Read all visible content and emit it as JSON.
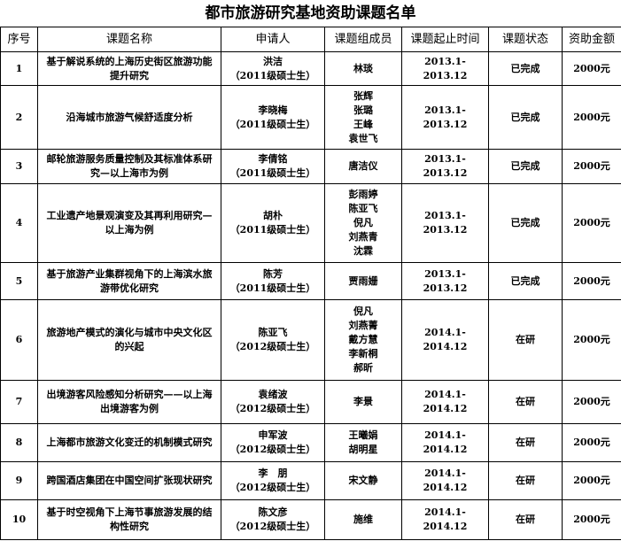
{
  "title": "都市旅游研究基地资助课题名单",
  "headers": [
    "序号",
    "课题名称",
    "申请人",
    "课题组成员",
    "课题起止时间",
    "课题状态",
    "资助金额"
  ],
  "rows": [
    {
      "no": "1",
      "topic": "基于解说系统的上海历史街区旅游功能提升研究",
      "applicant": "洪洁",
      "applicant_note": "（2011级硕士生）",
      "members": [
        "林琰"
      ],
      "period": "2013.1-2013.12",
      "status": "已完成",
      "amount": "2000元"
    },
    {
      "no": "2",
      "topic": "沿海城市旅游气候舒适度分析",
      "applicant": "李晓梅",
      "applicant_note": "（2011级硕士生）",
      "members": [
        "张辉",
        "张璐",
        "王峰",
        "袁世飞"
      ],
      "period": "2013.1-2013.12",
      "status": "已完成",
      "amount": "2000元"
    },
    {
      "no": "3",
      "topic": "邮轮旅游服务质量控制及其标准体系研究—以上海市为例",
      "applicant": "李倩铭",
      "applicant_note": "（2011级硕士生）",
      "members": [
        "唐洁仪"
      ],
      "period": "2013.1-2013.12",
      "status": "已完成",
      "amount": "2000元"
    },
    {
      "no": "4",
      "topic": "工业遗产地景观演变及其再利用研究—以上海为例",
      "applicant": "胡朴",
      "applicant_note": "（2011级硕士生）",
      "members": [
        "彭雨婷",
        "陈亚飞",
        "倪凡",
        "刘燕青",
        "沈霖"
      ],
      "period": "2013.1-2013.12",
      "status": "已完成",
      "amount": "2000元"
    },
    {
      "no": "5",
      "topic": "基于旅游产业集群视角下的上海滨水旅游带优化研究",
      "applicant": "陈芳",
      "applicant_note": "（2011级硕士生）",
      "members": [
        "贾雨姗"
      ],
      "period": "2013.1-2013.12",
      "status": "已完成",
      "amount": "2000元"
    },
    {
      "no": "6",
      "topic": "旅游地产模式的演化与城市中央文化区的兴起",
      "applicant": "陈亚飞",
      "applicant_note": "（2012级硕士生）",
      "members": [
        "倪凡",
        "刘燕菁",
        "戴方慧",
        "李新桐",
        "郝昕"
      ],
      "period": "2014.1-2014.12",
      "status": "在研",
      "amount": "2000元"
    },
    {
      "no": "7",
      "topic": "出境游客风险感知分析研究——以上海出境游客为例",
      "applicant": "袁绪波",
      "applicant_note": "（2012级硕士生）",
      "members": [
        "李景"
      ],
      "period": "2014.1-2014.12",
      "status": "在研",
      "amount": "2000元"
    },
    {
      "no": "8",
      "topic": "上海都市旅游文化变迁的机制模式研究",
      "applicant": "申军波",
      "applicant_note": "（2012级硕士生）",
      "members": [
        "王曦娟",
        "胡明星"
      ],
      "period": "2014.1-2014.12",
      "status": "在研",
      "amount": "2000元"
    },
    {
      "no": "9",
      "topic": "跨国酒店集团在中国空间扩张现状研究",
      "applicant": "李　朋",
      "applicant_note": "（2012级硕士生）",
      "members": [
        "宋文静"
      ],
      "period": "2014.1-2014.12",
      "status": "在研",
      "amount": "2000元"
    },
    {
      "no": "10",
      "topic": "基于时空视角下上海节事旅游发展的结构性研究",
      "applicant": "陈文彦",
      "applicant_note": "（2012级硕士生）",
      "members": [
        "施维"
      ],
      "period": "2014.1-2014.12",
      "status": "在研",
      "amount": "2000元"
    }
  ]
}
